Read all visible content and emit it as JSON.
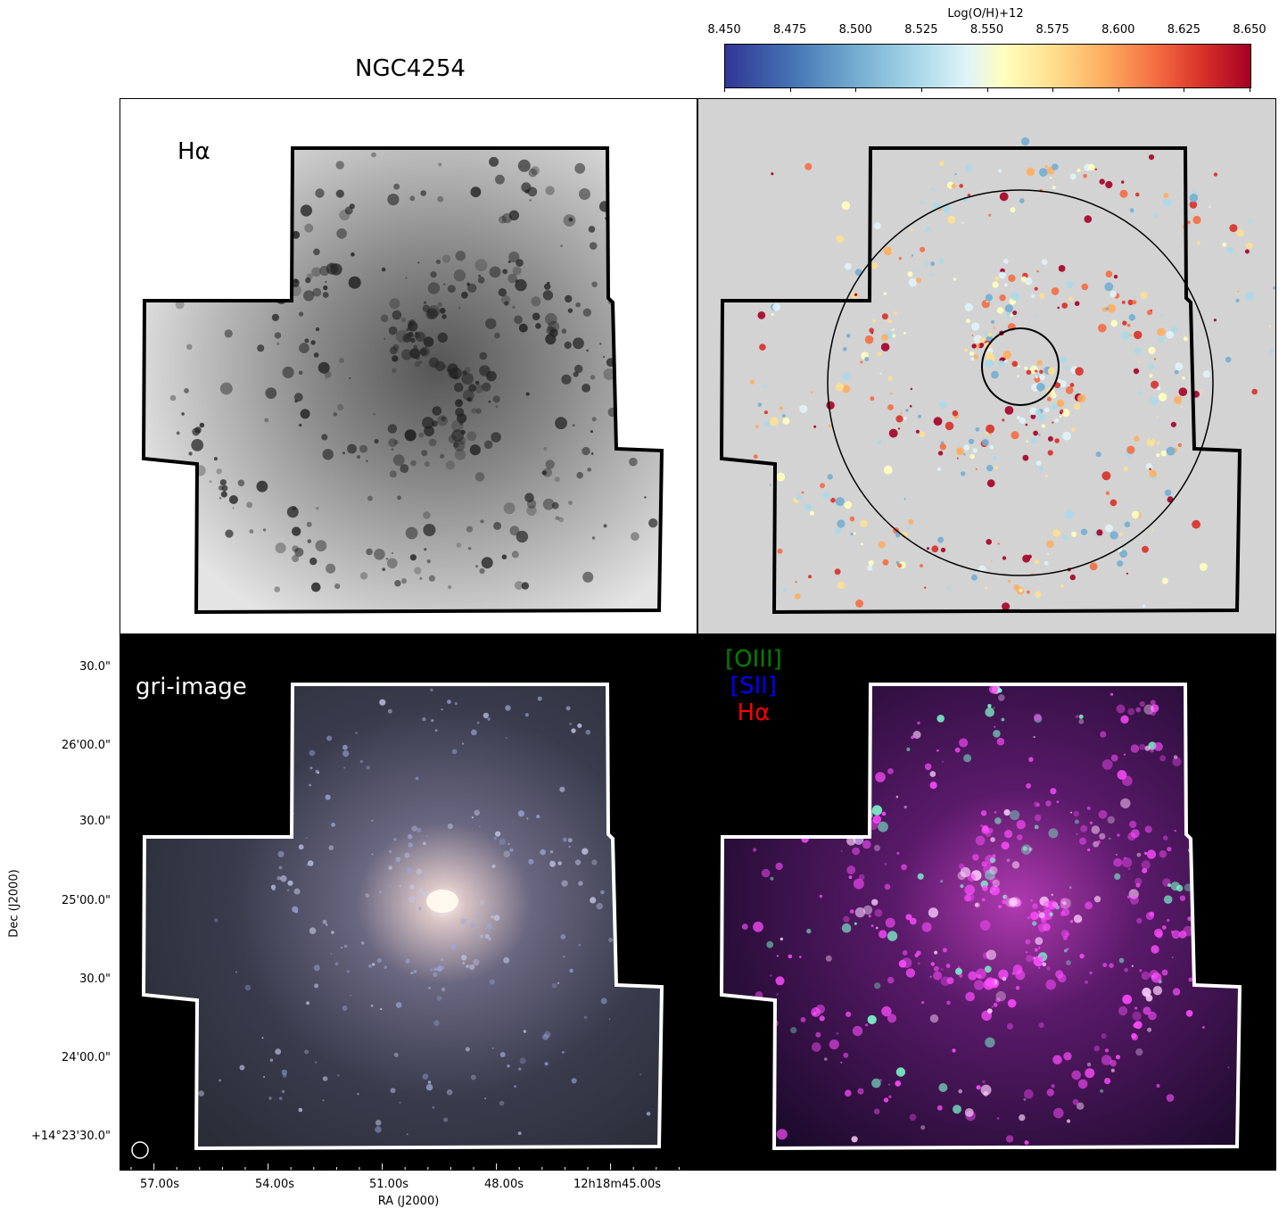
{
  "figure": {
    "title": "NGC4254",
    "colorbar": {
      "label": "Log(O/H)+12",
      "ticks": [
        "8.450",
        "8.475",
        "8.500",
        "8.525",
        "8.550",
        "8.575",
        "8.600",
        "8.625",
        "8.650"
      ],
      "range": [
        8.45,
        8.65
      ],
      "colormap": "RdYlBu_r"
    },
    "panels": {
      "ha": {
        "label": "Hα"
      },
      "metallicity": {
        "label": ""
      },
      "gri": {
        "label": "gri-image"
      },
      "rgb": {
        "legend": [
          {
            "text": "[OIII]",
            "color": "#008000"
          },
          {
            "text": "[SII]",
            "color": "#0000ff"
          },
          {
            "text": "Hα",
            "color": "#ff0000"
          }
        ]
      }
    },
    "axes": {
      "xlabel": "RA (J2000)",
      "ylabel": "Dec (J2000)",
      "xticks": [
        "57.00s",
        "54.00s",
        "51.00s",
        "48.00s",
        "12h18m45.00s"
      ],
      "yticks": [
        "30.0\"",
        "26'00.0\"",
        "30.0\"",
        "25'00.0\"",
        "30.0\"",
        "24'00.0\"",
        "+14°23'30.0\""
      ]
    },
    "colors": {
      "metallicity_background": "#d3d3d3",
      "footprint_dark": "#000000",
      "footprint_light": "#ffffff"
    }
  }
}
